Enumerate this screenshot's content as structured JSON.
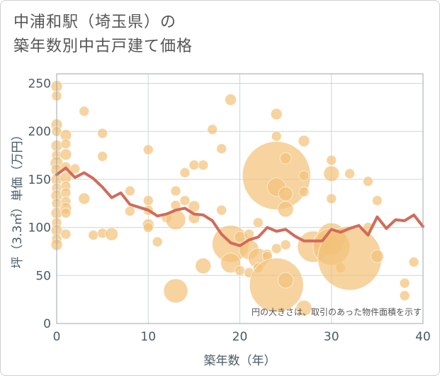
{
  "header": {
    "title_line1": "中浦和駅（埼玉県）の",
    "title_line2": "築年数別中古戸建て価格"
  },
  "colors": {
    "bubble": "#f2c27a",
    "line": "#d26b58",
    "grid": "#c9d6e0",
    "plot_border": "#9aa6ae"
  },
  "chart_data": {
    "type": "scatter",
    "xlabel": "築年数（年）",
    "ylabel": "坪（3.3㎡）単価（万円）",
    "xlim": [
      0,
      40
    ],
    "ylim": [
      0,
      260
    ],
    "xticks": [
      0,
      10,
      20,
      30,
      40
    ],
    "yticks": [
      0,
      50,
      100,
      150,
      200,
      250
    ],
    "annotation": "円の大きさは、取引のあった物件面積を示す",
    "bubbles": [
      {
        "x": 0,
        "y": 247,
        "r": 8
      },
      {
        "x": 0,
        "y": 237,
        "r": 7
      },
      {
        "x": 0,
        "y": 207,
        "r": 8
      },
      {
        "x": 0,
        "y": 200,
        "r": 7
      },
      {
        "x": 0,
        "y": 185,
        "r": 8
      },
      {
        "x": 0,
        "y": 175,
        "r": 7
      },
      {
        "x": 0,
        "y": 167,
        "r": 9
      },
      {
        "x": 0,
        "y": 160,
        "r": 8
      },
      {
        "x": 0,
        "y": 150,
        "r": 8
      },
      {
        "x": 0,
        "y": 141,
        "r": 7
      },
      {
        "x": 0,
        "y": 133,
        "r": 8
      },
      {
        "x": 0,
        "y": 125,
        "r": 7
      },
      {
        "x": 0,
        "y": 115,
        "r": 8
      },
      {
        "x": 0,
        "y": 105,
        "r": 7
      },
      {
        "x": 0,
        "y": 97,
        "r": 8
      },
      {
        "x": 0,
        "y": 88,
        "r": 7
      },
      {
        "x": 0,
        "y": 82,
        "r": 8
      },
      {
        "x": 1,
        "y": 196,
        "r": 8
      },
      {
        "x": 1,
        "y": 187,
        "r": 7
      },
      {
        "x": 1,
        "y": 176,
        "r": 8
      },
      {
        "x": 1,
        "y": 163,
        "r": 7
      },
      {
        "x": 1,
        "y": 152,
        "r": 8
      },
      {
        "x": 1,
        "y": 143,
        "r": 7
      },
      {
        "x": 1,
        "y": 136,
        "r": 7
      },
      {
        "x": 1,
        "y": 127,
        "r": 7
      },
      {
        "x": 1,
        "y": 120,
        "r": 8
      },
      {
        "x": 1,
        "y": 115,
        "r": 7
      },
      {
        "x": 1,
        "y": 93,
        "r": 7
      },
      {
        "x": 2,
        "y": 161,
        "r": 7
      },
      {
        "x": 3,
        "y": 221,
        "r": 7
      },
      {
        "x": 3,
        "y": 130,
        "r": 8
      },
      {
        "x": 4,
        "y": 92,
        "r": 7
      },
      {
        "x": 5,
        "y": 198,
        "r": 7
      },
      {
        "x": 5,
        "y": 174,
        "r": 7
      },
      {
        "x": 5,
        "y": 94,
        "r": 7
      },
      {
        "x": 6,
        "y": 93,
        "r": 9
      },
      {
        "x": 8,
        "y": 138,
        "r": 7
      },
      {
        "x": 8,
        "y": 117,
        "r": 7
      },
      {
        "x": 10,
        "y": 181,
        "r": 7
      },
      {
        "x": 10,
        "y": 128,
        "r": 7
      },
      {
        "x": 10,
        "y": 118,
        "r": 7
      },
      {
        "x": 10,
        "y": 103,
        "r": 8
      },
      {
        "x": 10,
        "y": 100,
        "r": 7
      },
      {
        "x": 11,
        "y": 85,
        "r": 7
      },
      {
        "x": 12,
        "y": 110,
        "r": 7
      },
      {
        "x": 13,
        "y": 138,
        "r": 7
      },
      {
        "x": 13,
        "y": 123,
        "r": 7
      },
      {
        "x": 13,
        "y": 108,
        "r": 14
      },
      {
        "x": 13,
        "y": 34,
        "r": 17
      },
      {
        "x": 14,
        "y": 157,
        "r": 7
      },
      {
        "x": 14,
        "y": 128,
        "r": 7
      },
      {
        "x": 15,
        "y": 165,
        "r": 7
      },
      {
        "x": 15,
        "y": 122,
        "r": 8
      },
      {
        "x": 15,
        "y": 110,
        "r": 8
      },
      {
        "x": 16,
        "y": 165,
        "r": 7
      },
      {
        "x": 16,
        "y": 60,
        "r": 11
      },
      {
        "x": 17,
        "y": 202,
        "r": 7
      },
      {
        "x": 18,
        "y": 182,
        "r": 7
      },
      {
        "x": 18,
        "y": 118,
        "r": 7
      },
      {
        "x": 19,
        "y": 233,
        "r": 8
      },
      {
        "x": 19,
        "y": 83,
        "r": 26
      },
      {
        "x": 19,
        "y": 63,
        "r": 14
      },
      {
        "x": 20,
        "y": 90,
        "r": 8
      },
      {
        "x": 20,
        "y": 55,
        "r": 7
      },
      {
        "x": 21,
        "y": 93,
        "r": 7
      },
      {
        "x": 21,
        "y": 77,
        "r": 14
      },
      {
        "x": 21,
        "y": 53,
        "r": 7
      },
      {
        "x": 22,
        "y": 105,
        "r": 7
      },
      {
        "x": 22,
        "y": 68,
        "r": 14
      },
      {
        "x": 22,
        "y": 58,
        "r": 7
      },
      {
        "x": 23,
        "y": 72,
        "r": 7
      },
      {
        "x": 23,
        "y": 70,
        "r": 7
      },
      {
        "x": 24,
        "y": 218,
        "r": 8
      },
      {
        "x": 24,
        "y": 195,
        "r": 7
      },
      {
        "x": 24,
        "y": 154,
        "r": 48
      },
      {
        "x": 24,
        "y": 142,
        "r": 13
      },
      {
        "x": 24,
        "y": 40,
        "r": 38
      },
      {
        "x": 24,
        "y": 78,
        "r": 7
      },
      {
        "x": 25,
        "y": 172,
        "r": 8
      },
      {
        "x": 25,
        "y": 135,
        "r": 10
      },
      {
        "x": 25,
        "y": 119,
        "r": 11
      },
      {
        "x": 25,
        "y": 82,
        "r": 7
      },
      {
        "x": 25,
        "y": 45,
        "r": 11
      },
      {
        "x": 27,
        "y": 190,
        "r": 8
      },
      {
        "x": 27,
        "y": 154,
        "r": 7
      },
      {
        "x": 27,
        "y": 137,
        "r": 7
      },
      {
        "x": 27,
        "y": 16,
        "r": 11
      },
      {
        "x": 28,
        "y": 80,
        "r": 22
      },
      {
        "x": 29,
        "y": 84,
        "r": 13
      },
      {
        "x": 30,
        "y": 170,
        "r": 7
      },
      {
        "x": 30,
        "y": 156,
        "r": 11
      },
      {
        "x": 30,
        "y": 130,
        "r": 7
      },
      {
        "x": 30,
        "y": 90,
        "r": 20
      },
      {
        "x": 30,
        "y": 82,
        "r": 15
      },
      {
        "x": 30,
        "y": 80,
        "r": 26
      },
      {
        "x": 31,
        "y": 58,
        "r": 7
      },
      {
        "x": 32,
        "y": 156,
        "r": 7
      },
      {
        "x": 32,
        "y": 68,
        "r": 45
      },
      {
        "x": 34,
        "y": 148,
        "r": 7
      },
      {
        "x": 34,
        "y": 100,
        "r": 7
      },
      {
        "x": 35,
        "y": 128,
        "r": 7
      },
      {
        "x": 35,
        "y": 70,
        "r": 9
      },
      {
        "x": 38,
        "y": 42,
        "r": 7
      },
      {
        "x": 38,
        "y": 29,
        "r": 7
      },
      {
        "x": 39,
        "y": 64,
        "r": 7
      }
    ],
    "trend_line": {
      "x": [
        0,
        1,
        2,
        3,
        4,
        5,
        6,
        7,
        8,
        9,
        10,
        11,
        12,
        13,
        14,
        15,
        16,
        17,
        18,
        19,
        20,
        21,
        22,
        23,
        24,
        25,
        26,
        27,
        28,
        29,
        30,
        31,
        32,
        33,
        34,
        35,
        36,
        37,
        38,
        39,
        40
      ],
      "y": [
        155,
        162,
        152,
        157,
        151,
        142,
        131,
        136,
        124,
        121,
        118,
        112,
        114,
        118,
        120,
        114,
        113,
        107,
        93,
        84,
        81,
        87,
        90,
        100,
        96,
        98,
        91,
        86,
        86,
        86,
        98,
        95,
        99,
        102,
        92,
        111,
        99,
        108,
        107,
        113,
        101
      ]
    }
  }
}
